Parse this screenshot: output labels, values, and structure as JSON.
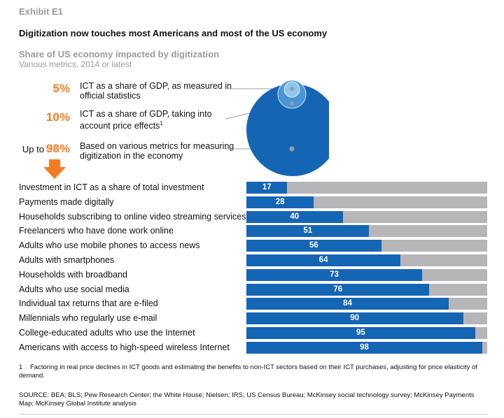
{
  "header": {
    "exhibit": "Exhibit E1",
    "title": "Digitization now touches most Americans and most of the US economy",
    "subtitle": "Share of US economy impacted by digitization",
    "subsubtitle": "Various metrics, 2014 or latest"
  },
  "callouts": [
    {
      "prefix": "",
      "value": "5%",
      "text": "ICT as a share of GDP, as measured in official statistics",
      "sup": ""
    },
    {
      "prefix": "",
      "value": "10%",
      "text": "ICT as a share of GDP, taking into account price effects",
      "sup": "1"
    },
    {
      "prefix": "Up to",
      "value": "98%",
      "text": "Based on various metrics for measuring digitization in the economy",
      "sup": ""
    }
  ],
  "colors": {
    "accent": "#f47c20",
    "bar_fill": "#1565b5",
    "bar_background": "#b6b6b8",
    "circle_large": "#1565b5",
    "circle_small": "#8fc6ee",
    "circle_medium": "#4a95d6"
  },
  "icons": {
    "arrow": "arrow-down-icon"
  },
  "chart_data": {
    "type": "bar",
    "orientation": "horizontal",
    "categories": [
      "Investment in ICT as a share of total investment",
      "Payments made digitally",
      "Households subscribing to online video streaming services",
      "Freelancers who have done work online",
      "Adults who use mobile phones to access news",
      "Adults with smartphones",
      "Households with broadband",
      "Adults who use social media",
      "Individual tax returns that are e-filed",
      "Millennials who regularly use e-mail",
      "College-educated adults who use the Internet",
      "Americans with access to high-speed wireless Internet"
    ],
    "values": [
      17,
      28,
      40,
      51,
      56,
      64,
      73,
      76,
      84,
      90,
      95,
      98
    ],
    "xlim": [
      0,
      100
    ],
    "circle_values": [
      5,
      10,
      98
    ]
  },
  "footnote": {
    "number": "1",
    "text": "Factoring in real price declines in ICT goods and estimating the benefits to non-ICT sectors based on their ICT purchases, adjusting for price elasticity of demand."
  },
  "source": "SOURCE:  BEA; BLS; Pew Research Center; the White House; Nielsen; IRS; US Census Bureau; McKinsey social technology survey; McKinsey Payments Map; McKinsey Global Institute analysis"
}
